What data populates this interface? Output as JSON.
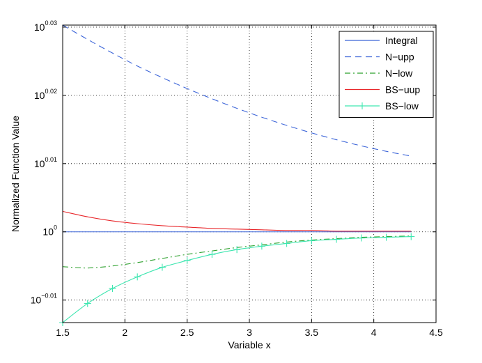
{
  "chart_data": {
    "type": "line",
    "title": "",
    "xlabel": "Variable x",
    "ylabel": "Normalized Function Value",
    "xlim": [
      1.5,
      4.5
    ],
    "ylim_log10": [
      -0.0133,
      0.0303
    ],
    "y_scale": "log",
    "grid": "dotted",
    "legend_position": "top-right",
    "x_ticks": [
      1.5,
      2,
      2.5,
      3,
      3.5,
      4,
      4.5
    ],
    "x_tick_labels": [
      "1.5",
      "2",
      "2.5",
      "3",
      "3.5",
      "4",
      "4.5"
    ],
    "y_ticks": [
      {
        "base": "10",
        "exp": "−0.01",
        "log10": -0.01
      },
      {
        "base": "10",
        "exp": "0",
        "log10": 0.0
      },
      {
        "base": "10",
        "exp": "0.01",
        "log10": 0.01
      },
      {
        "base": "10",
        "exp": "0.02",
        "log10": 0.02
      },
      {
        "base": "10",
        "exp": "0.03",
        "log10": 0.03
      }
    ],
    "x": [
      1.5,
      1.7,
      1.9,
      2.1,
      2.3,
      2.5,
      2.7,
      2.9,
      3.1,
      3.3,
      3.5,
      3.7,
      3.9,
      4.1,
      4.3
    ],
    "series": [
      {
        "name": "Integral",
        "color": "#3a63d8",
        "dash": "solid",
        "marker": "none",
        "values_log10": [
          0,
          0,
          0,
          0,
          0,
          0,
          0,
          0,
          0,
          0,
          0,
          0,
          0,
          0,
          0
        ]
      },
      {
        "name": "N−upp",
        "color": "#3a63d8",
        "dash": "dashed",
        "marker": "none",
        "values_log10": [
          0.0303,
          0.0282,
          0.0262,
          0.0243,
          0.0226,
          0.021,
          0.0195,
          0.0181,
          0.0168,
          0.0156,
          0.0145,
          0.0135,
          0.0126,
          0.0118,
          0.0111
        ]
      },
      {
        "name": "N−low",
        "color": "#2ca02c",
        "dash": "dashdot",
        "marker": "none",
        "values_log10": [
          -0.0051,
          -0.0053,
          -0.005,
          -0.0045,
          -0.0039,
          -0.0033,
          -0.0028,
          -0.0023,
          -0.0019,
          -0.0015,
          -0.0012,
          -0.001,
          -0.0008,
          -0.0007,
          -0.0006
        ]
      },
      {
        "name": "BS−uup",
        "color": "#e8262a",
        "dash": "solid",
        "marker": "none",
        "values_log10": [
          0.003,
          0.0022,
          0.0016,
          0.0012,
          0.0009,
          0.0007,
          0.0005,
          0.0004,
          0.0003,
          0.0002,
          0.0002,
          0.0001,
          0.0001,
          0.0001,
          0.0001
        ]
      },
      {
        "name": "BS−low",
        "color": "#3ee6b0",
        "dash": "solid",
        "marker": "plus",
        "values_log10": [
          -0.0133,
          -0.0105,
          -0.0083,
          -0.0066,
          -0.0052,
          -0.0042,
          -0.0033,
          -0.0026,
          -0.0021,
          -0.0017,
          -0.0013,
          -0.0011,
          -0.0009,
          -0.0008,
          -0.0007
        ]
      }
    ]
  }
}
